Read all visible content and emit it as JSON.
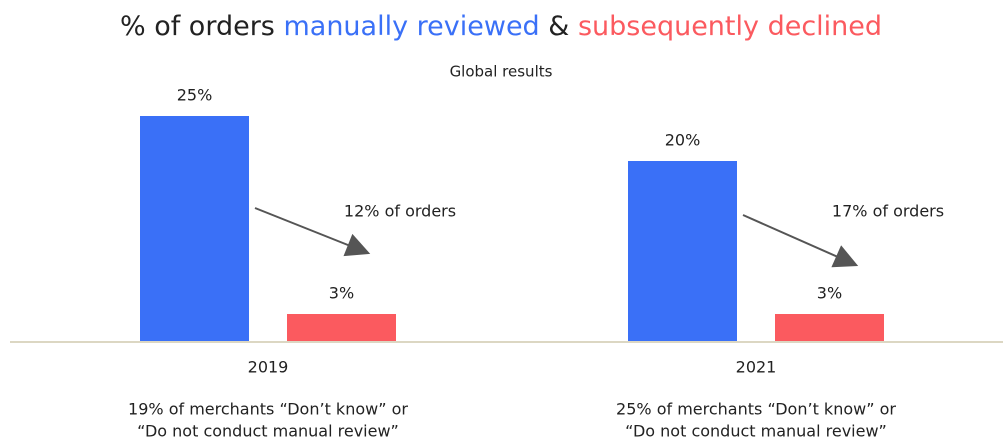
{
  "chart_data": {
    "type": "bar",
    "title_prefix": "% of orders",
    "title_joiner": "&",
    "subtitle": "Global results",
    "categories": [
      "2019",
      "2021"
    ],
    "series": [
      {
        "name": "manually reviewed",
        "color": "#3a70f7",
        "values": [
          25,
          20
        ],
        "value_labels": [
          "25%",
          "20%"
        ]
      },
      {
        "name": "subsequently declined",
        "color": "#fb5a5f",
        "values": [
          3,
          3
        ],
        "value_labels": [
          "3%",
          "3%"
        ]
      }
    ],
    "annotations": [
      "12% of orders",
      "17% of orders"
    ],
    "footnotes": [
      [
        "19% of merchants “Don’t know” or",
        "“Do not conduct manual review”"
      ],
      [
        "25% of merchants “Don’t know” or",
        "“Do not conduct manual review”"
      ]
    ]
  }
}
